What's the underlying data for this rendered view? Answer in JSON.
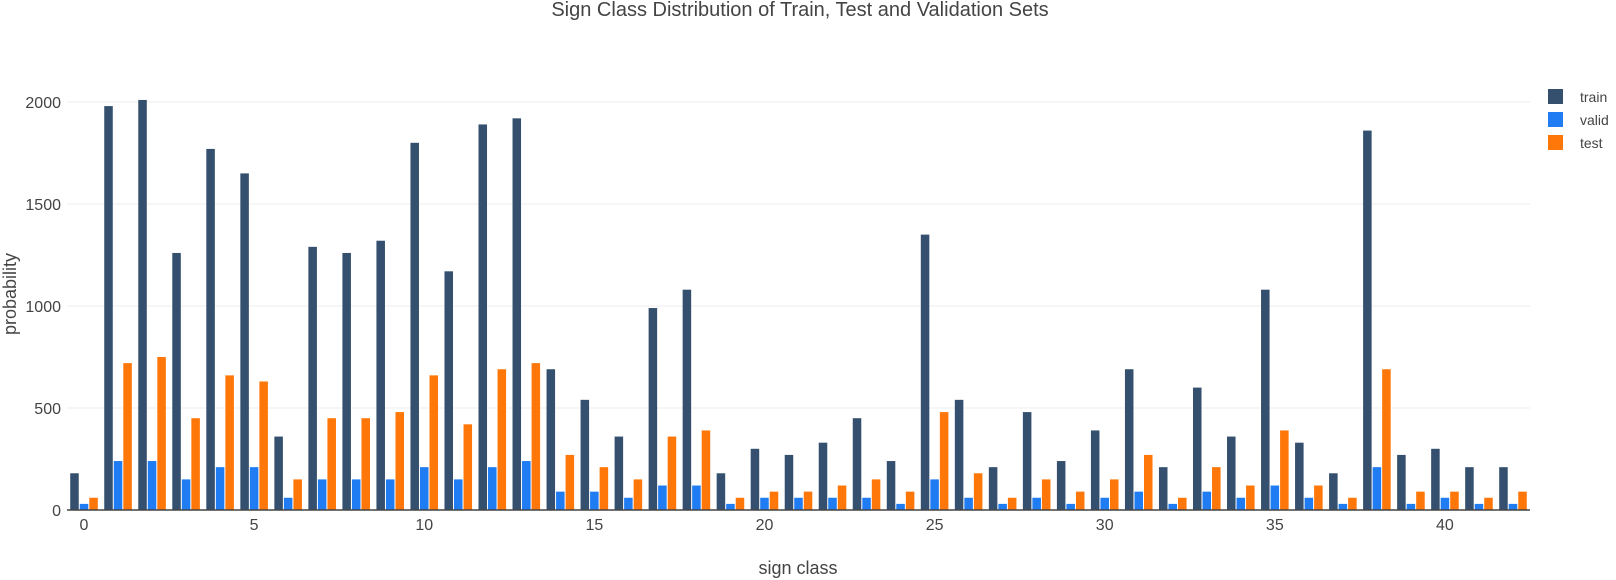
{
  "chart_data": {
    "type": "bar",
    "title": "Sign Class Distribution of Train, Test and Validation Sets",
    "xlabel": "sign class",
    "ylabel": "probability",
    "x": [
      0,
      1,
      2,
      3,
      4,
      5,
      6,
      7,
      8,
      9,
      10,
      11,
      12,
      13,
      14,
      15,
      16,
      17,
      18,
      19,
      20,
      21,
      22,
      23,
      24,
      25,
      26,
      27,
      28,
      29,
      30,
      31,
      32,
      33,
      34,
      35,
      36,
      37,
      38,
      39,
      40,
      41,
      42
    ],
    "xticks": [
      0,
      5,
      10,
      15,
      20,
      25,
      30,
      35,
      40
    ],
    "yticks": [
      0,
      500,
      1000,
      1500,
      2000
    ],
    "ylim": [
      0,
      2100
    ],
    "grid": true,
    "legend_position": "top-right",
    "series": [
      {
        "name": "train",
        "color": "#34506e",
        "values": [
          180,
          1980,
          2010,
          1260,
          1770,
          1650,
          360,
          1290,
          1260,
          1320,
          1800,
          1170,
          1890,
          1920,
          690,
          540,
          360,
          990,
          1080,
          180,
          300,
          270,
          330,
          450,
          240,
          1350,
          540,
          210,
          480,
          240,
          390,
          690,
          210,
          600,
          360,
          1080,
          330,
          180,
          1860,
          270,
          300,
          210,
          210
        ]
      },
      {
        "name": "valid",
        "color": "#1f7cf2",
        "values": [
          30,
          240,
          240,
          150,
          210,
          210,
          60,
          150,
          150,
          150,
          210,
          150,
          210,
          240,
          90,
          90,
          60,
          120,
          120,
          30,
          60,
          60,
          60,
          60,
          30,
          150,
          60,
          30,
          60,
          30,
          60,
          90,
          30,
          90,
          60,
          120,
          60,
          30,
          210,
          30,
          60,
          30,
          30
        ]
      },
      {
        "name": "test",
        "color": "#ff7708",
        "values": [
          60,
          720,
          750,
          450,
          660,
          630,
          150,
          450,
          450,
          480,
          660,
          420,
          690,
          720,
          270,
          210,
          150,
          360,
          390,
          60,
          90,
          90,
          120,
          150,
          90,
          480,
          180,
          60,
          150,
          90,
          150,
          270,
          60,
          210,
          120,
          390,
          120,
          60,
          690,
          90,
          90,
          60,
          90
        ]
      }
    ]
  }
}
